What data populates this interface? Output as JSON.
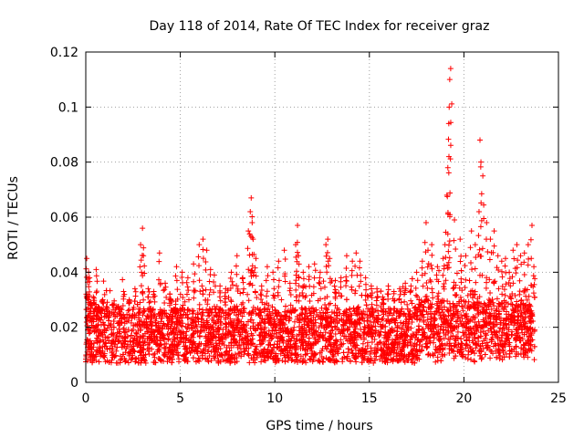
{
  "chart_data": {
    "type": "scatter",
    "title": "Day 118 of 2014, Rate Of TEC Index for receiver graz",
    "xlabel": "GPS time / hours",
    "ylabel": "ROTI / TECUs",
    "xlim": [
      0,
      25
    ],
    "ylim": [
      0,
      0.12
    ],
    "x_ticks": [
      0,
      5,
      10,
      15,
      20,
      25
    ],
    "y_ticks": [
      0,
      0.02,
      0.04,
      0.06,
      0.08,
      0.1,
      0.12
    ],
    "x_tick_labels": [
      "0",
      "5",
      "10",
      "15",
      "20",
      "25"
    ],
    "y_tick_labels": [
      "0",
      "0.02",
      "0.04",
      "0.06",
      "0.08",
      "0.1",
      "0.12"
    ],
    "grid": true,
    "marker": "+",
    "color": "#ff0000",
    "series": [
      {
        "name": "ROTI",
        "x": [
          0.05,
          0.1,
          0.15,
          0.2,
          0.25,
          0.3,
          0.4,
          0.55,
          0.7,
          0.9,
          1.1,
          1.4,
          1.7,
          2.0,
          2.3,
          2.6,
          2.9,
          3.0,
          3.05,
          3.3,
          3.6,
          3.9,
          4.2,
          4.5,
          4.8,
          5.1,
          5.4,
          5.7,
          6.0,
          6.2,
          6.4,
          6.6,
          6.8,
          7.1,
          7.4,
          7.7,
          8.0,
          8.3,
          8.6,
          8.7,
          8.75,
          8.8,
          8.85,
          9.0,
          9.3,
          9.6,
          9.9,
          10.2,
          10.5,
          10.8,
          11.1,
          11.2,
          11.25,
          11.5,
          11.8,
          12.1,
          12.4,
          12.7,
          12.8,
          12.9,
          13.2,
          13.5,
          13.8,
          14.1,
          14.3,
          14.5,
          14.8,
          15.1,
          15.4,
          15.7,
          16.0,
          16.3,
          16.6,
          16.9,
          17.2,
          17.5,
          17.8,
          18.0,
          18.1,
          18.3,
          18.6,
          18.9,
          19.0,
          19.1,
          19.15,
          19.2,
          19.22,
          19.25,
          19.3,
          19.5,
          19.8,
          20.1,
          20.4,
          20.6,
          20.8,
          20.85,
          20.9,
          21.0,
          21.2,
          21.4,
          21.6,
          21.8,
          22.0,
          22.2,
          22.4,
          22.6,
          22.8,
          23.0,
          23.2,
          23.4,
          23.6,
          23.7
        ],
        "y": [
          0.045,
          0.032,
          0.04,
          0.038,
          0.029,
          0.028,
          0.031,
          0.041,
          0.026,
          0.03,
          0.024,
          0.028,
          0.027,
          0.033,
          0.03,
          0.034,
          0.05,
          0.056,
          0.046,
          0.034,
          0.033,
          0.047,
          0.036,
          0.03,
          0.042,
          0.04,
          0.038,
          0.043,
          0.05,
          0.052,
          0.048,
          0.041,
          0.039,
          0.035,
          0.034,
          0.04,
          0.046,
          0.038,
          0.055,
          0.062,
          0.067,
          0.058,
          0.052,
          0.045,
          0.035,
          0.042,
          0.04,
          0.044,
          0.048,
          0.036,
          0.05,
          0.057,
          0.046,
          0.04,
          0.042,
          0.043,
          0.04,
          0.05,
          0.052,
          0.045,
          0.037,
          0.038,
          0.046,
          0.044,
          0.047,
          0.044,
          0.038,
          0.035,
          0.034,
          0.031,
          0.035,
          0.033,
          0.034,
          0.036,
          0.035,
          0.04,
          0.044,
          0.058,
          0.048,
          0.05,
          0.042,
          0.045,
          0.05,
          0.068,
          0.078,
          0.094,
          0.1,
          0.11,
          0.114,
          0.059,
          0.052,
          0.046,
          0.055,
          0.05,
          0.062,
          0.088,
          0.08,
          0.075,
          0.058,
          0.052,
          0.055,
          0.046,
          0.044,
          0.045,
          0.04,
          0.048,
          0.05,
          0.046,
          0.047,
          0.05,
          0.057,
          0.042
        ]
      }
    ],
    "background_band": {
      "x_range": [
        0,
        23.75
      ],
      "typical_min": 0.007,
      "typical_max": 0.027
    }
  }
}
